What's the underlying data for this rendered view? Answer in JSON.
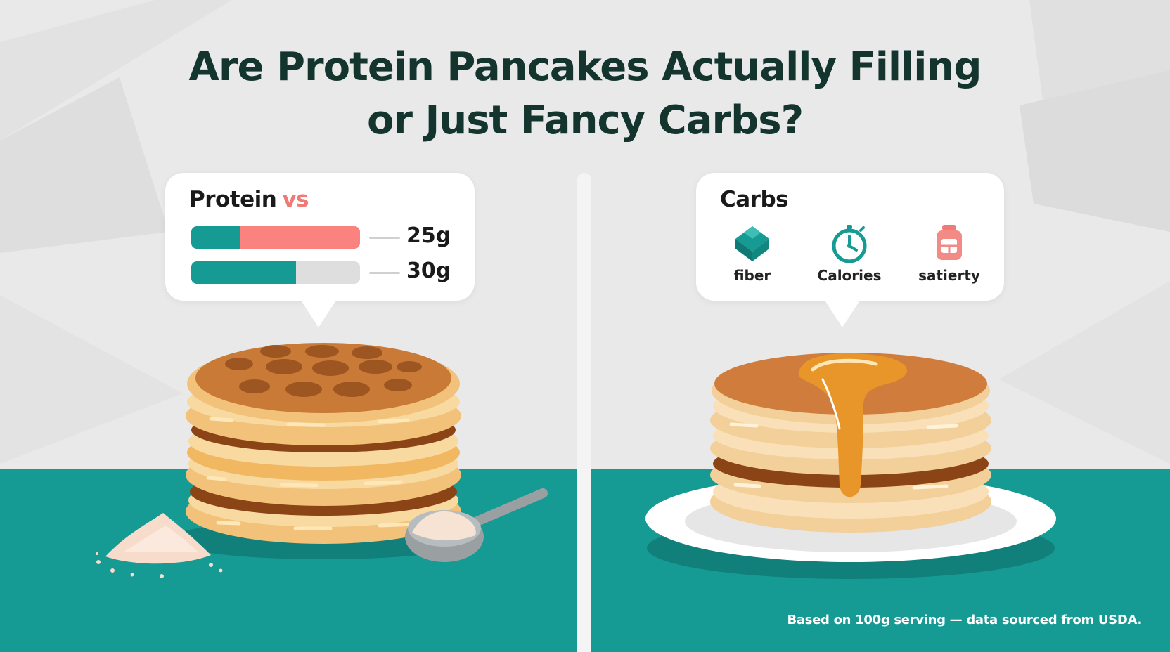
{
  "title": {
    "line1": "Are Protein Pancakes Actually Filling",
    "line2": "or Just Fancy Carbs?"
  },
  "colors": {
    "teal": "#169a94",
    "coral": "#fb837f",
    "dark_text": "#14352e",
    "pancake": "#f5c98a",
    "syrup": "#e99a2c"
  },
  "protein_panel": {
    "label": "Protein",
    "vs": "vs",
    "bars": [
      {
        "value_label": "25g",
        "teal_fraction": 0.29,
        "coral_fraction": 0.71
      },
      {
        "value_label": "30g",
        "teal_fraction": 0.62,
        "coral_fraction": 0.0
      }
    ]
  },
  "carbs_panel": {
    "label": "Carbs",
    "items": [
      {
        "label": "fiber",
        "icon": "green-cube-icon"
      },
      {
        "label": "Calories",
        "icon": "stopwatch-icon"
      },
      {
        "label": "satierty",
        "icon": "jar-icon"
      }
    ]
  },
  "footnote": "Based on 100g serving — data sourced from USDA."
}
